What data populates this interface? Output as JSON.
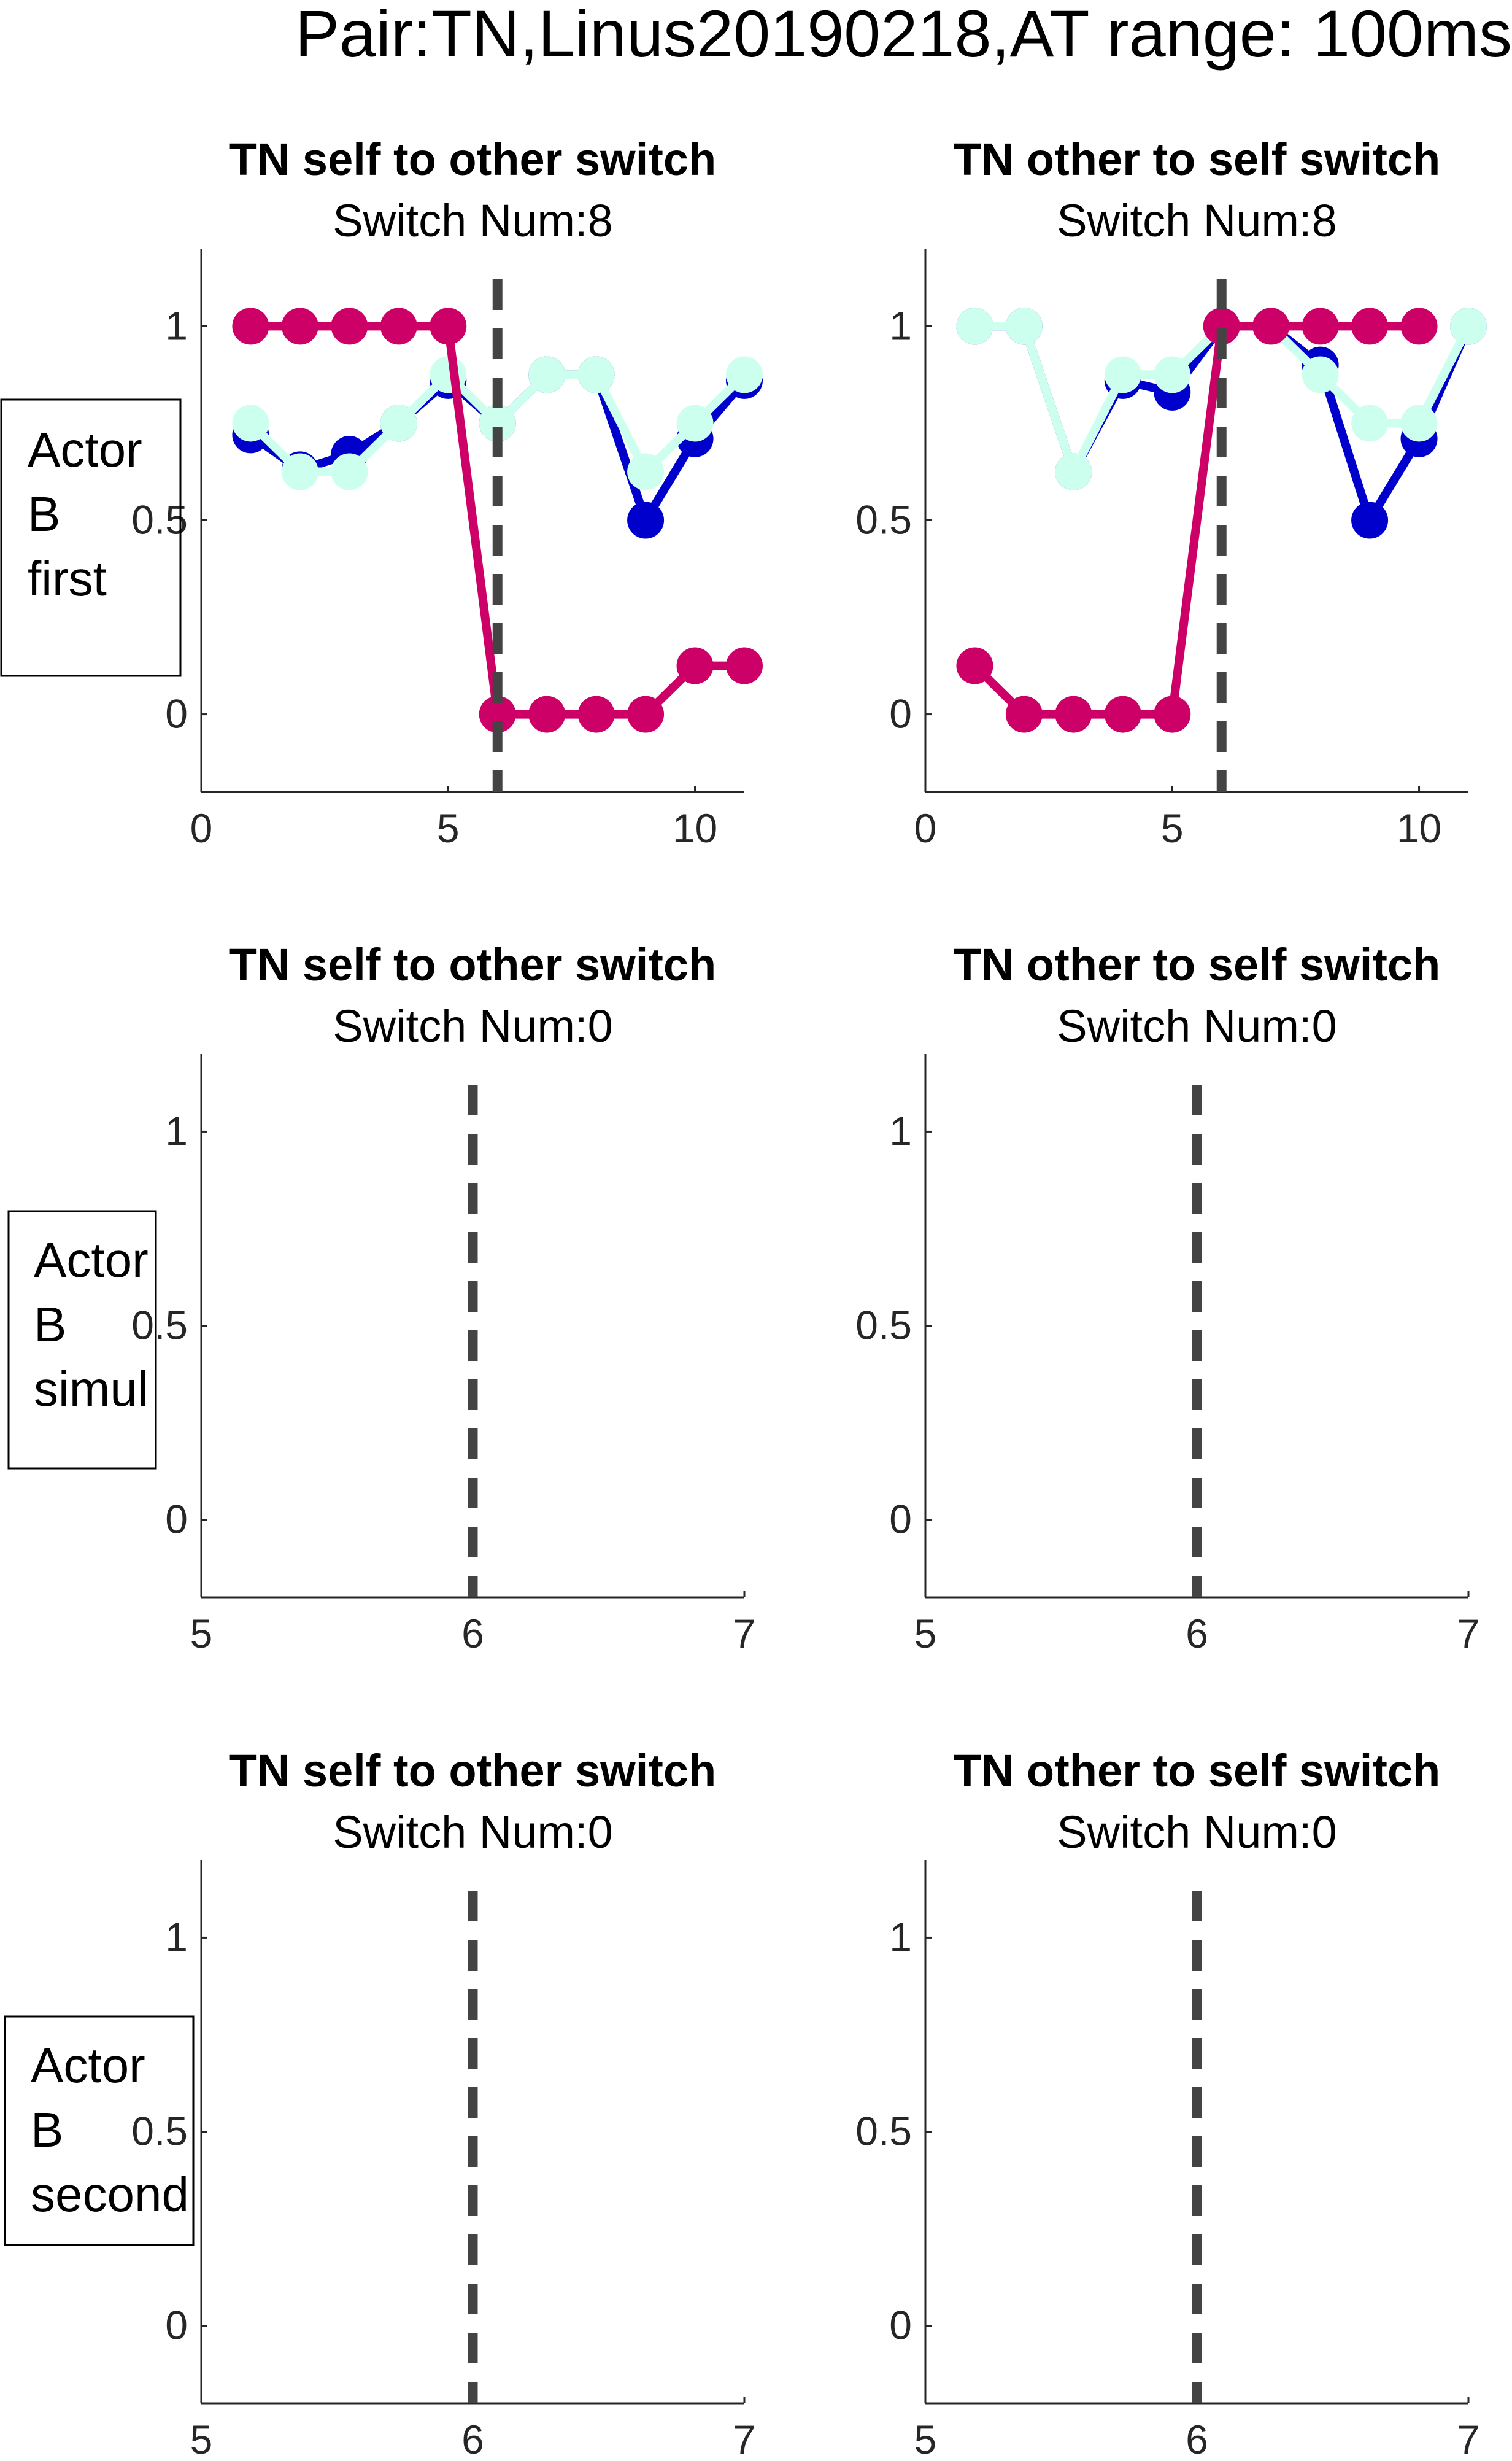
{
  "figure_title": "Pair:TN,Linus20190218,AT range: 100ms",
  "colors": {
    "magenta": "#CC0066",
    "blue": "#0000CC",
    "mint": "#CCFFEE",
    "dashed_line": "#444444",
    "axis": "#262626"
  },
  "chart_data": [
    {
      "type": "line",
      "row_label": "Actor\nB\nfirst",
      "title": "TN self to other switch",
      "subtitle": "Switch Num:8",
      "xlim": [
        0,
        11
      ],
      "ylim": [
        -0.2,
        1.2
      ],
      "xticks": [
        0,
        5,
        10
      ],
      "yticks": [
        0,
        0.5,
        1
      ],
      "ytick_labels": [
        "0",
        "0.5",
        "1"
      ],
      "vline_x": 6,
      "series": [
        {
          "color": "#0000CC",
          "thick": true,
          "points": [
            [
              1,
              0.72
            ],
            [
              2,
              0.63
            ],
            [
              3,
              0.67
            ],
            [
              4,
              0.75
            ],
            [
              5,
              0.86
            ],
            [
              6,
              0.75
            ],
            [
              7,
              0.875
            ],
            [
              8,
              0.875
            ],
            [
              9,
              0.5
            ],
            [
              10,
              0.71
            ],
            [
              11,
              0.86
            ]
          ]
        },
        {
          "color": "#CCFFEE",
          "thick": true,
          "points": [
            [
              1,
              0.75
            ],
            [
              2,
              0.625
            ],
            [
              3,
              0.625
            ],
            [
              4,
              0.75
            ],
            [
              5,
              0.875
            ],
            [
              6,
              0.75
            ],
            [
              7,
              0.875
            ],
            [
              8,
              0.875
            ],
            [
              9,
              0.625
            ],
            [
              10,
              0.75
            ],
            [
              11,
              0.875
            ]
          ]
        },
        {
          "color": "#CC0066",
          "thick": true,
          "points": [
            [
              1,
              1
            ],
            [
              2,
              1
            ],
            [
              3,
              1
            ],
            [
              4,
              1
            ],
            [
              5,
              1
            ],
            [
              6,
              0
            ],
            [
              7,
              0
            ],
            [
              8,
              0
            ],
            [
              9,
              0
            ],
            [
              10,
              0.125
            ],
            [
              11,
              0.125
            ]
          ]
        }
      ]
    },
    {
      "type": "line",
      "row_label": "",
      "title": "TN other to self switch",
      "subtitle": "Switch Num:8",
      "xlim": [
        0,
        11
      ],
      "ylim": [
        -0.2,
        1.2
      ],
      "xticks": [
        0,
        5,
        10
      ],
      "yticks": [
        0,
        0.5,
        1
      ],
      "ytick_labels": [
        "0",
        "0.5",
        "1"
      ],
      "vline_x": 6,
      "series": [
        {
          "color": "#0000CC",
          "thick": true,
          "points": [
            [
              1,
              1
            ],
            [
              2,
              1
            ],
            [
              3,
              0.625
            ],
            [
              4,
              0.86
            ],
            [
              5,
              0.83
            ],
            [
              6,
              1
            ],
            [
              7,
              1
            ],
            [
              8,
              0.9
            ],
            [
              9,
              0.5
            ],
            [
              10,
              0.71
            ],
            [
              11,
              1
            ]
          ]
        },
        {
          "color": "#CCFFEE",
          "thick": true,
          "points": [
            [
              1,
              1
            ],
            [
              2,
              1
            ],
            [
              3,
              0.625
            ],
            [
              4,
              0.875
            ],
            [
              5,
              0.875
            ],
            [
              6,
              1
            ],
            [
              7,
              1
            ],
            [
              8,
              0.875
            ],
            [
              9,
              0.75
            ],
            [
              10,
              0.75
            ],
            [
              11,
              1
            ]
          ]
        },
        {
          "color": "#CC0066",
          "thick": true,
          "points": [
            [
              1,
              0.125
            ],
            [
              2,
              0
            ],
            [
              3,
              0
            ],
            [
              4,
              0
            ],
            [
              5,
              0
            ],
            [
              6,
              1
            ],
            [
              7,
              1
            ],
            [
              8,
              1
            ],
            [
              9,
              1
            ],
            [
              10,
              1
            ]
          ]
        }
      ]
    },
    {
      "type": "line",
      "row_label": "Actor\nB\nsimul",
      "title": "TN self to other switch",
      "subtitle": "Switch Num:0",
      "xlim": [
        5,
        7
      ],
      "ylim": [
        -0.2,
        1.2
      ],
      "xticks": [
        5,
        6,
        7
      ],
      "yticks": [
        0,
        0.5,
        1
      ],
      "ytick_labels": [
        "0",
        "0.5",
        "1"
      ],
      "vline_x": 6,
      "series": []
    },
    {
      "type": "line",
      "row_label": "",
      "title": "TN other to self switch",
      "subtitle": "Switch Num:0",
      "xlim": [
        5,
        7
      ],
      "ylim": [
        -0.2,
        1.2
      ],
      "xticks": [
        5,
        6,
        7
      ],
      "yticks": [
        0,
        0.5,
        1
      ],
      "ytick_labels": [
        "0",
        "0.5",
        "1"
      ],
      "vline_x": 6,
      "series": []
    },
    {
      "type": "line",
      "row_label": "Actor\nB\nsecond",
      "title": "TN self to other switch",
      "subtitle": "Switch Num:0",
      "xlim": [
        5,
        7
      ],
      "ylim": [
        -0.2,
        1.2
      ],
      "xticks": [
        5,
        6,
        7
      ],
      "yticks": [
        0,
        0.5,
        1
      ],
      "ytick_labels": [
        "0",
        "0.5",
        "1"
      ],
      "vline_x": 6,
      "series": []
    },
    {
      "type": "line",
      "row_label": "",
      "title": "TN other to self switch",
      "subtitle": "Switch Num:0",
      "xlim": [
        5,
        7
      ],
      "ylim": [
        -0.2,
        1.2
      ],
      "xticks": [
        5,
        6,
        7
      ],
      "yticks": [
        0,
        0.5,
        1
      ],
      "ytick_labels": [
        "0",
        "0.5",
        "1"
      ],
      "vline_x": 6,
      "series": []
    }
  ]
}
